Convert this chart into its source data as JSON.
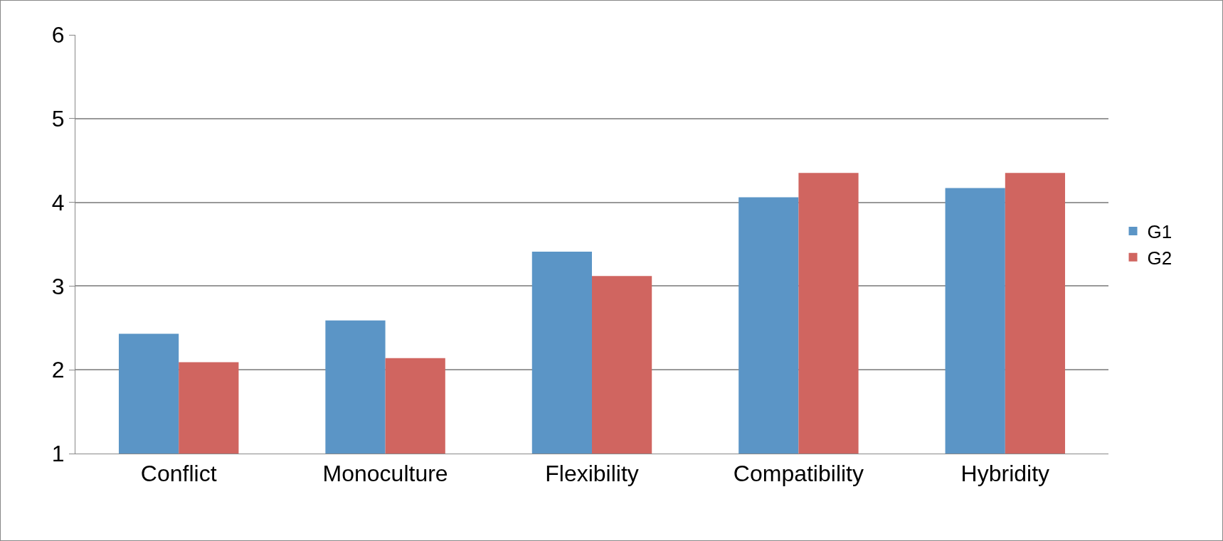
{
  "chart_data": {
    "type": "bar",
    "categories": [
      "Conflict",
      "Monoculture",
      "Flexibility",
      "Compatibility",
      "Hybridity"
    ],
    "series": [
      {
        "name": "G1",
        "color": "#5b95c6",
        "values": [
          2.43,
          2.59,
          3.41,
          4.06,
          4.17
        ]
      },
      {
        "name": "G2",
        "color": "#d06560",
        "values": [
          2.09,
          2.14,
          3.12,
          4.35,
          4.35
        ]
      }
    ],
    "ylim": [
      1,
      6
    ],
    "yticks": [
      1,
      2,
      3,
      4,
      5,
      6
    ],
    "grid": "y",
    "legend": "right"
  }
}
